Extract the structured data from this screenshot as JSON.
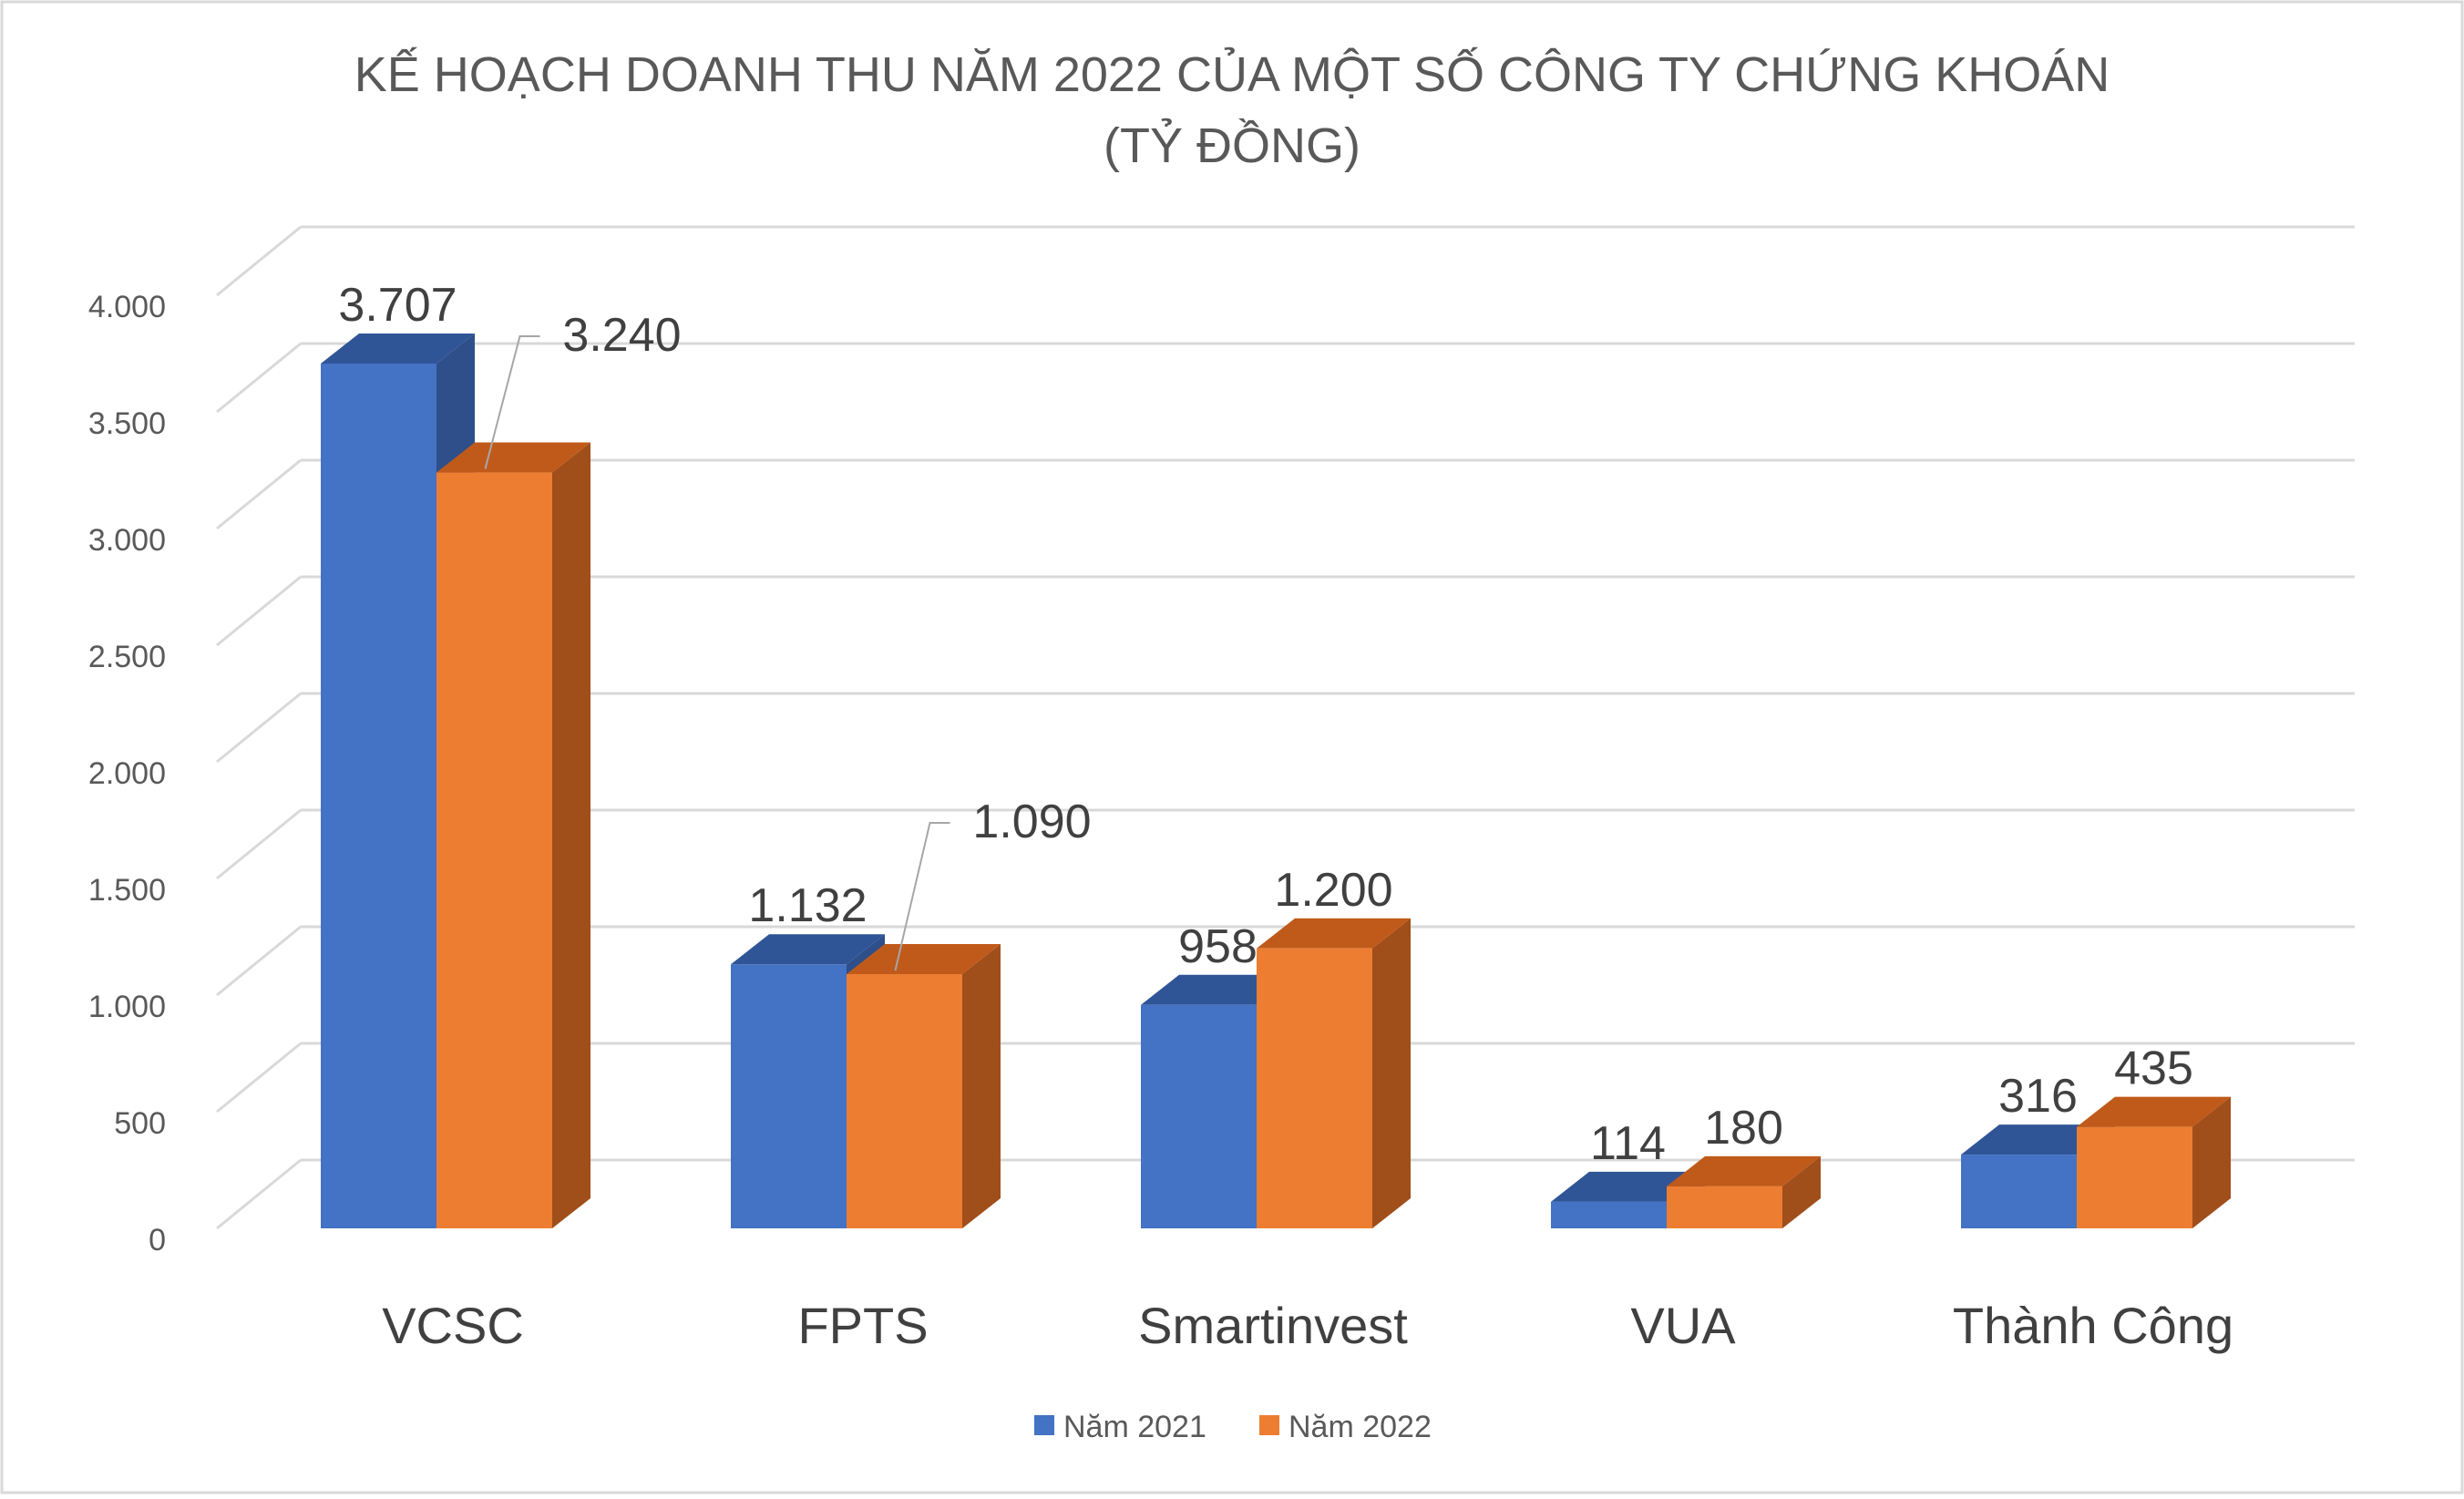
{
  "chart_data": {
    "type": "bar",
    "title": "KẾ HOẠCH DOANH THU NĂM 2022 CỦA MỘT SỐ CÔNG TY CHỨNG KHOÁN",
    "subtitle": "(TỶ ĐỒNG)",
    "categories": [
      "VCSC",
      "FPTS",
      "Smartinvest",
      "VUA",
      "Thành Công"
    ],
    "series": [
      {
        "name": "Năm 2021",
        "values": [
          3707,
          1132,
          958,
          114,
          316
        ],
        "labels": [
          "3.707",
          "1.132",
          "958",
          "114",
          "316"
        ],
        "color": "#4472C4",
        "side_color": "#2E4F8A",
        "top_color": "#2F5597"
      },
      {
        "name": "Năm 2022",
        "values": [
          3240,
          1090,
          1200,
          180,
          435
        ],
        "labels": [
          "3.240",
          "1.090",
          "1.200",
          "180",
          "435"
        ],
        "color": "#ED7D31",
        "side_color": "#A04E1A",
        "top_color": "#C05A1A"
      }
    ],
    "yticks": [
      0,
      500,
      1000,
      1500,
      2000,
      2500,
      3000,
      3500,
      4000
    ],
    "ytick_labels": [
      "0",
      "500",
      "1.000",
      "1.500",
      "2.000",
      "2.500",
      "3.000",
      "3.500",
      "4.000"
    ],
    "ylim": [
      0,
      4000
    ],
    "xlabel": "",
    "ylabel": "",
    "grid": true,
    "legend_position": "bottom",
    "gridline_color": "#D9D9D9",
    "frame_color": "#D9D9D9",
    "text_color": "#595959"
  }
}
